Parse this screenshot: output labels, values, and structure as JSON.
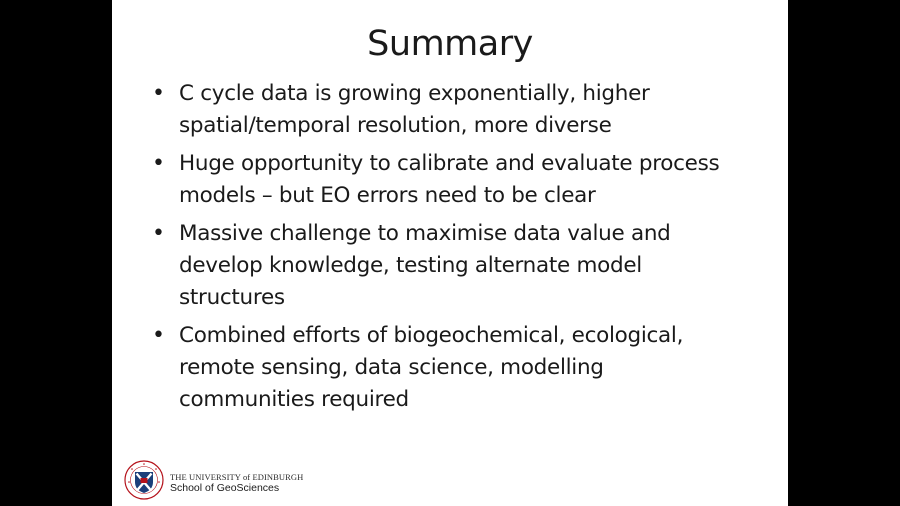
{
  "slide": {
    "title": "Summary",
    "bullets": [
      {
        "lines": [
          "C cycle data is growing exponentially, higher",
          "spatial/temporal resolution, more diverse"
        ]
      },
      {
        "lines": [
          "Huge opportunity to calibrate and evaluate process",
          "models – but EO errors need to be clear"
        ]
      },
      {
        "lines": [
          "Massive challenge to maximise data value and",
          "develop knowledge, testing alternate model",
          "structures"
        ]
      },
      {
        "lines": [
          "Combined efforts of biogeochemical, ecological,",
          "remote sensing, data science, modelling",
          "communities required"
        ]
      }
    ]
  },
  "footer": {
    "logo_icon": "university-crest-icon",
    "university": "THE UNIVERSITY of EDINBURGH",
    "school": "School of GeoSciences"
  },
  "colors": {
    "background": "#000000",
    "slide": "#ffffff",
    "text": "#1a1a1a",
    "crest_red": "#b5121b",
    "crest_blue": "#1c3f7a"
  }
}
